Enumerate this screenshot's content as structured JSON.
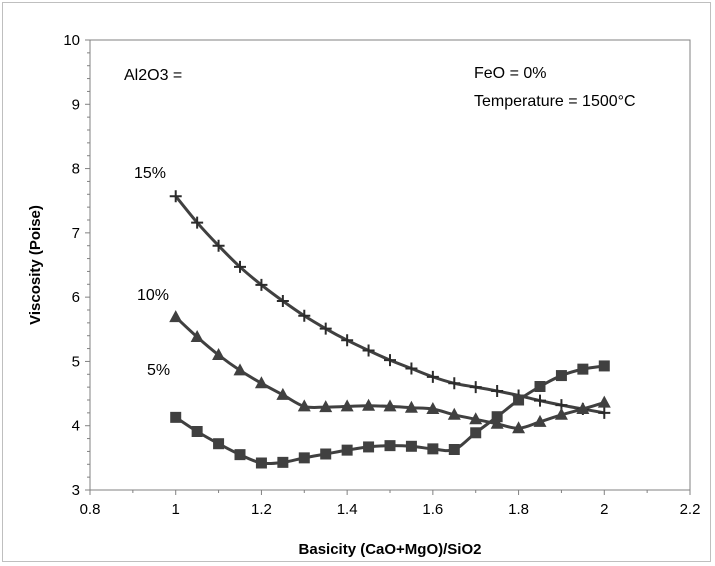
{
  "chart_data": {
    "type": "line",
    "title": "",
    "xlabel": "Basicity (CaO+MgO)/SiO2",
    "ylabel": "Viscosity (Poise)",
    "xlim": [
      0.8,
      2.2
    ],
    "ylim": [
      3,
      10
    ],
    "xticks": [
      "0.8",
      "1",
      "1.2",
      "1.4",
      "1.6",
      "1.8",
      "2",
      "2.2"
    ],
    "yticks": [
      "3",
      "4",
      "5",
      "6",
      "7",
      "8",
      "9",
      "10"
    ],
    "grid": false,
    "legend": "none",
    "annotations": {
      "al2o3": "Al2O3 =",
      "feo": "FeO = 0%",
      "temperature": "Temperature = 1500°C"
    },
    "series": [
      {
        "label": "15%",
        "marker": "plus",
        "color": "#404040",
        "x": [
          1.0,
          1.05,
          1.1,
          1.15,
          1.2,
          1.25,
          1.3,
          1.35,
          1.4,
          1.45,
          1.5,
          1.55,
          1.6,
          1.65,
          1.7,
          1.75,
          1.8,
          1.85,
          1.9,
          1.95,
          2.0
        ],
        "y": [
          7.57,
          7.16,
          6.8,
          6.47,
          6.19,
          5.94,
          5.71,
          5.51,
          5.33,
          5.17,
          5.02,
          4.89,
          4.76,
          4.66,
          4.6,
          4.54,
          4.47,
          4.39,
          4.32,
          4.26,
          4.2
        ]
      },
      {
        "label": "10%",
        "marker": "triangle",
        "color": "#404040",
        "x": [
          1.0,
          1.05,
          1.1,
          1.15,
          1.2,
          1.25,
          1.3,
          1.35,
          1.4,
          1.45,
          1.5,
          1.55,
          1.6,
          1.65,
          1.7,
          1.75,
          1.8,
          1.85,
          1.9,
          1.95,
          2.0
        ],
        "y": [
          5.69,
          5.38,
          5.1,
          4.86,
          4.66,
          4.48,
          4.3,
          4.29,
          4.3,
          4.31,
          4.3,
          4.28,
          4.26,
          4.17,
          4.1,
          4.03,
          3.96,
          4.06,
          4.17,
          4.26,
          4.36
        ]
      },
      {
        "label": "5%",
        "marker": "square",
        "color": "#404040",
        "x": [
          1.0,
          1.05,
          1.1,
          1.15,
          1.2,
          1.25,
          1.3,
          1.35,
          1.4,
          1.45,
          1.5,
          1.55,
          1.6,
          1.65,
          1.7,
          1.75,
          1.8,
          1.85,
          1.9,
          1.95,
          2.0
        ],
        "y": [
          4.13,
          3.91,
          3.72,
          3.55,
          3.42,
          3.43,
          3.5,
          3.56,
          3.62,
          3.67,
          3.69,
          3.68,
          3.64,
          3.63,
          3.89,
          4.14,
          4.4,
          4.61,
          4.78,
          4.88,
          4.93
        ]
      }
    ]
  }
}
